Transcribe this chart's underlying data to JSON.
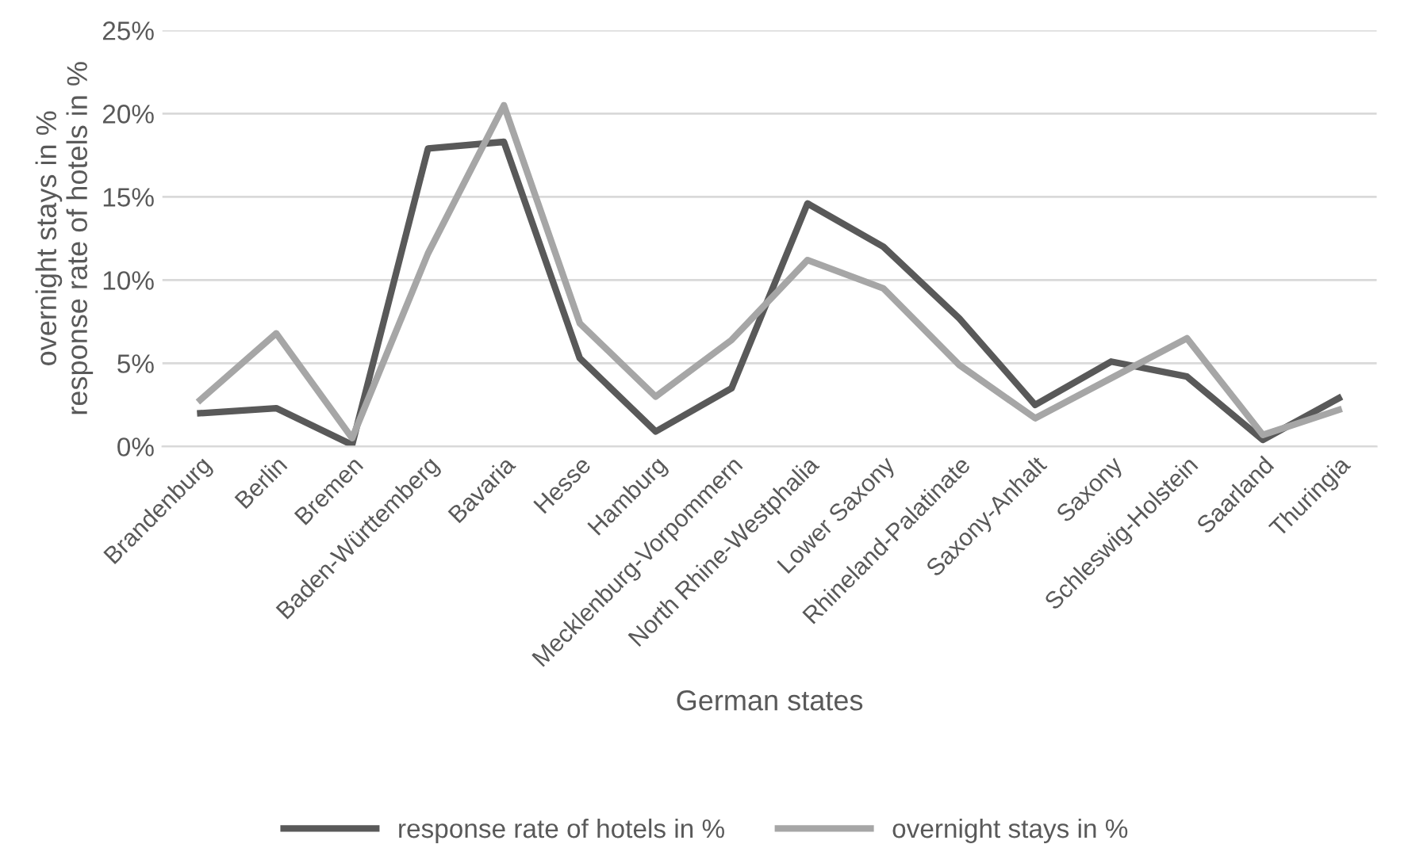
{
  "chart_data": {
    "type": "line",
    "xlabel": "German states",
    "ylabel": "overnight stays in %\nresponse rate of hotels in %",
    "categories": [
      "Brandenburg",
      "Berlin",
      "Bremen",
      "Baden-Württemberg",
      "Bavaria",
      "Hesse",
      "Hamburg",
      "Mecklenburg-Vorpommern",
      "North Rhine-Westphalia",
      "Lower Saxony",
      "Rhineland-Palatinate",
      "Saxony-Anhalt",
      "Saxony",
      "Schleswig-Holstein",
      "Saarland",
      "Thuringia"
    ],
    "series": [
      {
        "name": "response rate of hotels in %",
        "color": "#595959",
        "values": [
          2.0,
          2.3,
          0.1,
          17.9,
          18.3,
          5.3,
          0.9,
          3.5,
          14.6,
          12.0,
          7.7,
          2.5,
          5.1,
          4.2,
          0.4,
          2.9
        ]
      },
      {
        "name": "overnight stays in %",
        "color": "#a6a6a6",
        "values": [
          2.8,
          6.8,
          0.5,
          11.6,
          20.5,
          7.4,
          3.0,
          6.4,
          11.2,
          9.5,
          4.9,
          1.7,
          4.1,
          6.5,
          0.7,
          2.2
        ]
      }
    ],
    "ylim": [
      0,
      25
    ],
    "yticks": [
      {
        "value": 0,
        "label": "0%"
      },
      {
        "value": 5,
        "label": "5%"
      },
      {
        "value": 10,
        "label": "10%"
      },
      {
        "value": 15,
        "label": "15%"
      },
      {
        "value": 20,
        "label": "20%"
      },
      {
        "value": 25,
        "label": "25%"
      }
    ],
    "grid": "y",
    "legend": "bottom",
    "marker": "none",
    "line_style": "solid"
  }
}
